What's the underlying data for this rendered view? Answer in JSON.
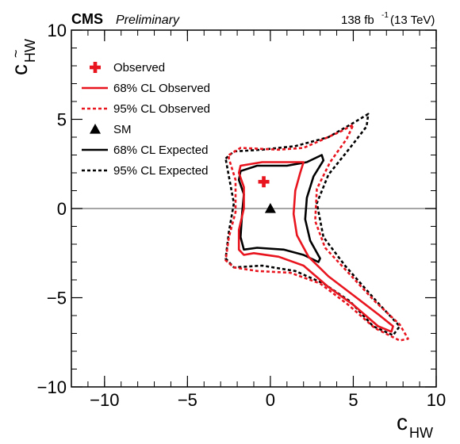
{
  "header": {
    "experiment": "CMS",
    "status": "Preliminary",
    "lumi_value": "138 fb",
    "lumi_exp": "-1",
    "energy": "(13 TeV)"
  },
  "axes": {
    "xlabel_main": "c",
    "xlabel_sub": "HW",
    "ylabel_main": "c",
    "ylabel_sub": "HW",
    "ylabel_tilde": "~"
  },
  "colors": {
    "observed": "#e8141e",
    "expected": "#000000",
    "zero_line": "#888888"
  },
  "chart_data": {
    "type": "scatter",
    "xlim": [
      -12,
      10
    ],
    "ylim": [
      -10,
      10
    ],
    "xticks": [
      {
        "value": -10,
        "label": "−10"
      },
      {
        "value": -5,
        "label": "−5"
      },
      {
        "value": 0,
        "label": "0"
      },
      {
        "value": 5,
        "label": "5"
      },
      {
        "value": 10,
        "label": "10"
      }
    ],
    "yticks": [
      {
        "value": -10,
        "label": "−10"
      },
      {
        "value": -5,
        "label": "−5"
      },
      {
        "value": 0,
        "label": "0"
      },
      {
        "value": 5,
        "label": "5"
      },
      {
        "value": 10,
        "label": "10"
      }
    ],
    "legend_position": "top-left",
    "legend": [
      {
        "label": "Observed",
        "style": "cross",
        "color": "#e8141e"
      },
      {
        "label": "68% CL Observed",
        "style": "solid",
        "color": "#e8141e"
      },
      {
        "label": "95% CL Observed",
        "style": "dotted",
        "color": "#e8141e"
      },
      {
        "label": "SM",
        "style": "triangle",
        "color": "#000000"
      },
      {
        "label": "68% CL Expected",
        "style": "solid",
        "color": "#000000"
      },
      {
        "label": "95% CL Expected",
        "style": "dotted",
        "color": "#000000"
      }
    ],
    "points": {
      "observed": {
        "x": -0.4,
        "y": 1.5
      },
      "sm": {
        "x": 0,
        "y": 0
      }
    },
    "contours": [
      {
        "name": "95% CL Expected",
        "style": "dotted",
        "color": "#000000",
        "points": [
          [
            -2.7,
            2.8
          ],
          [
            -2.2,
            3.2
          ],
          [
            -0.5,
            3.3
          ],
          [
            1.5,
            3.5
          ],
          [
            3.5,
            4.0
          ],
          [
            5.0,
            4.8
          ],
          [
            5.9,
            5.3
          ],
          [
            5.8,
            4.6
          ],
          [
            4.8,
            3.4
          ],
          [
            3.5,
            1.9
          ],
          [
            2.8,
            0.3
          ],
          [
            3.2,
            -1.6
          ],
          [
            4.5,
            -3.2
          ],
          [
            6.4,
            -5.2
          ],
          [
            7.8,
            -6.6
          ],
          [
            7.4,
            -7.1
          ],
          [
            6.2,
            -6.6
          ],
          [
            4.8,
            -5.2
          ],
          [
            3.2,
            -4.2
          ],
          [
            1.5,
            -3.5
          ],
          [
            -0.5,
            -3.2
          ],
          [
            -2.2,
            -3.3
          ],
          [
            -2.7,
            -2.8
          ],
          [
            -2.5,
            -1.3
          ],
          [
            -2.2,
            0.3
          ],
          [
            -2.5,
            1.8
          ]
        ]
      },
      {
        "name": "95% CL Observed",
        "style": "dotted",
        "color": "#e8141e",
        "points": [
          [
            -2.5,
            3.0
          ],
          [
            -1.8,
            3.4
          ],
          [
            0.5,
            3.3
          ],
          [
            2.0,
            3.4
          ],
          [
            3.0,
            3.8
          ],
          [
            4.2,
            4.3
          ],
          [
            5.0,
            4.7
          ],
          [
            4.6,
            3.9
          ],
          [
            3.6,
            2.6
          ],
          [
            2.8,
            1.1
          ],
          [
            2.7,
            -0.7
          ],
          [
            3.3,
            -2.2
          ],
          [
            4.8,
            -3.7
          ],
          [
            6.3,
            -5.2
          ],
          [
            7.8,
            -6.5
          ],
          [
            8.3,
            -7.3
          ],
          [
            7.8,
            -7.4
          ],
          [
            6.3,
            -6.7
          ],
          [
            4.7,
            -5.4
          ],
          [
            3.0,
            -4.2
          ],
          [
            1.2,
            -3.6
          ],
          [
            -0.8,
            -3.5
          ],
          [
            -2.2,
            -3.3
          ],
          [
            -2.7,
            -2.9
          ],
          [
            -2.5,
            -1.6
          ],
          [
            -2.1,
            -0.2
          ],
          [
            -2.1,
            1.6
          ],
          [
            -2.5,
            2.8
          ]
        ]
      },
      {
        "name": "68% CL Expected",
        "style": "solid",
        "color": "#000000",
        "points": [
          [
            -1.8,
            2.1
          ],
          [
            -0.8,
            2.4
          ],
          [
            1.0,
            2.4
          ],
          [
            2.2,
            2.6
          ],
          [
            3.1,
            3.0
          ],
          [
            3.2,
            2.7
          ],
          [
            2.6,
            1.8
          ],
          [
            2.2,
            0.6
          ],
          [
            2.1,
            -0.6
          ],
          [
            2.4,
            -1.8
          ],
          [
            3.0,
            -2.8
          ],
          [
            2.9,
            -3.0
          ],
          [
            2.0,
            -2.6
          ],
          [
            0.8,
            -2.3
          ],
          [
            -0.8,
            -2.2
          ],
          [
            -1.6,
            -2.3
          ],
          [
            -1.8,
            -1.6
          ],
          [
            -1.7,
            -0.2
          ],
          [
            -1.6,
            0.8
          ],
          [
            -1.9,
            1.6
          ]
        ]
      },
      {
        "name": "68% CL Observed",
        "style": "solid",
        "color": "#e8141e",
        "points": [
          [
            -1.8,
            2.4
          ],
          [
            -0.5,
            2.6
          ],
          [
            1.2,
            2.6
          ],
          [
            2.0,
            2.6
          ],
          [
            1.8,
            2.0
          ],
          [
            1.5,
            1.0
          ],
          [
            1.4,
            -0.3
          ],
          [
            1.6,
            -1.5
          ],
          [
            2.3,
            -2.7
          ],
          [
            3.5,
            -3.8
          ],
          [
            5.2,
            -5.0
          ],
          [
            6.6,
            -6.0
          ],
          [
            7.4,
            -6.6
          ],
          [
            7.3,
            -6.9
          ],
          [
            6.5,
            -6.6
          ],
          [
            5.0,
            -5.4
          ],
          [
            3.5,
            -4.4
          ],
          [
            2.0,
            -3.2
          ],
          [
            0.5,
            -2.7
          ],
          [
            -1.0,
            -2.5
          ],
          [
            -1.6,
            -2.6
          ],
          [
            -1.9,
            -2.3
          ],
          [
            -1.9,
            -1.2
          ],
          [
            -1.6,
            0.0
          ],
          [
            -1.6,
            1.2
          ],
          [
            -1.9,
            2.0
          ]
        ]
      }
    ]
  }
}
